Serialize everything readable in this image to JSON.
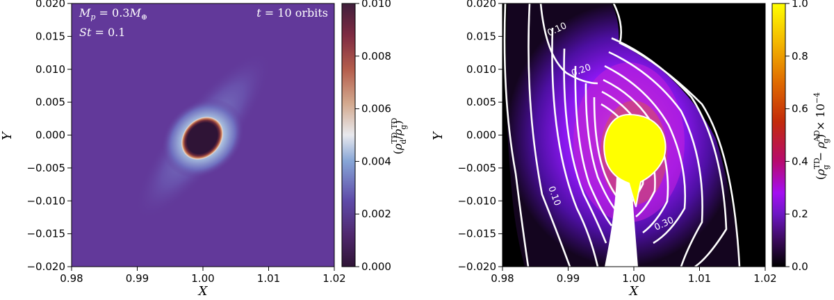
{
  "chart_data": [
    {
      "type": "heatmap",
      "title": "",
      "xlabel": "X",
      "ylabel": "Y",
      "xlim": [
        0.98,
        1.02
      ],
      "ylim": [
        -0.02,
        0.02
      ],
      "xticks": [
        0.98,
        0.99,
        1.0,
        1.01,
        1.02
      ],
      "xtick_labels": [
        "0.98",
        "0.99",
        "1.00",
        "1.01",
        "1.02"
      ],
      "yticks": [
        0.02,
        0.015,
        0.01,
        0.005,
        0.0,
        -0.005,
        -0.01,
        -0.015,
        -0.02
      ],
      "ytick_labels": [
        "0.020",
        "0.015",
        "0.010",
        "0.005",
        "0.000",
        "−0.005",
        "−0.010",
        "−0.015",
        "−0.020"
      ],
      "colorbar": {
        "label": "(ρ_d^TD/ρ_g^TD)",
        "range": [
          0.0,
          0.01
        ],
        "ticks": [
          0.0,
          0.002,
          0.004,
          0.006,
          0.008,
          0.01
        ],
        "tick_labels": [
          "0.000",
          "0.002",
          "0.004",
          "0.006",
          "0.008",
          "0.010"
        ],
        "colormap": "twilight_shifted"
      },
      "annotations": {
        "mass": "M_p = 0.3M_⊕",
        "mass_prefix": "M",
        "mass_sub": "p",
        "mass_mid": " = 0.3",
        "mass_suffix": "M",
        "mass_sub2": "⊕",
        "stokes_prefix": "St",
        "stokes_value": " = 0.1",
        "time_prefix": "t",
        "time_value": " = 10 orbits"
      },
      "features": {
        "core_center": [
          1.0,
          -0.0015
        ],
        "core_value": 0.01,
        "background_value": 0.0013
      }
    },
    {
      "type": "heatmap",
      "title": "",
      "xlabel": "X",
      "ylabel": "Y",
      "xlim": [
        0.98,
        1.02
      ],
      "ylim": [
        -0.02,
        0.02
      ],
      "xticks": [
        0.98,
        0.99,
        1.0,
        1.01,
        1.02
      ],
      "xtick_labels": [
        "0.98",
        "0.99",
        "1.00",
        "1.01",
        "1.02"
      ],
      "yticks": [
        0.02,
        0.015,
        0.01,
        0.005,
        0.0,
        -0.005,
        -0.01,
        -0.015,
        -0.02
      ],
      "ytick_labels": [
        "0.020",
        "0.015",
        "0.010",
        "0.005",
        "0.000",
        "−0.005",
        "−0.010",
        "−0.015",
        "−0.020"
      ],
      "colorbar": {
        "label": "(ρ_g^TD − ρ_g^AD) × 10^−4",
        "range": [
          0.0,
          1.0
        ],
        "ticks": [
          0.0,
          0.2,
          0.4,
          0.6,
          0.8,
          1.0
        ],
        "tick_labels": [
          "0.0",
          "0.2",
          "0.4",
          "0.6",
          "0.8",
          "1.0"
        ],
        "colormap": "gnuplot"
      },
      "contour_labels": [
        "0.10",
        "0.20",
        "0.10",
        "0.30"
      ],
      "contour_color": "#ffffff",
      "features": {
        "saturated_blob_center": [
          0.9998,
          0.0
        ],
        "saturated_value": 1.0
      }
    }
  ],
  "colors": {
    "twilight_low": "#2f1436",
    "twilight_bg": "#62399a",
    "twilight_mid": "#e8e9ee",
    "twilight_high": "#401f3c",
    "gnuplot_low": "#000000",
    "gnuplot_high": "#ffff00"
  }
}
